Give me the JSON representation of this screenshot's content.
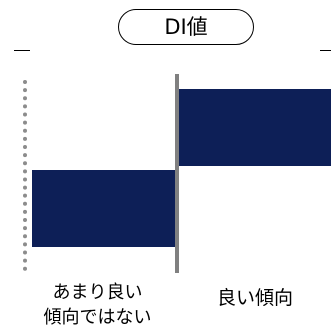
{
  "title": "DI値",
  "labels": {
    "negative_line1": "あまり良い",
    "negative_line2": "傾向ではない",
    "positive": "良い傾向"
  },
  "colors": {
    "bar": "#0d1f57",
    "center_line": "#808080",
    "left_boundary": "#8c8c8c"
  }
}
